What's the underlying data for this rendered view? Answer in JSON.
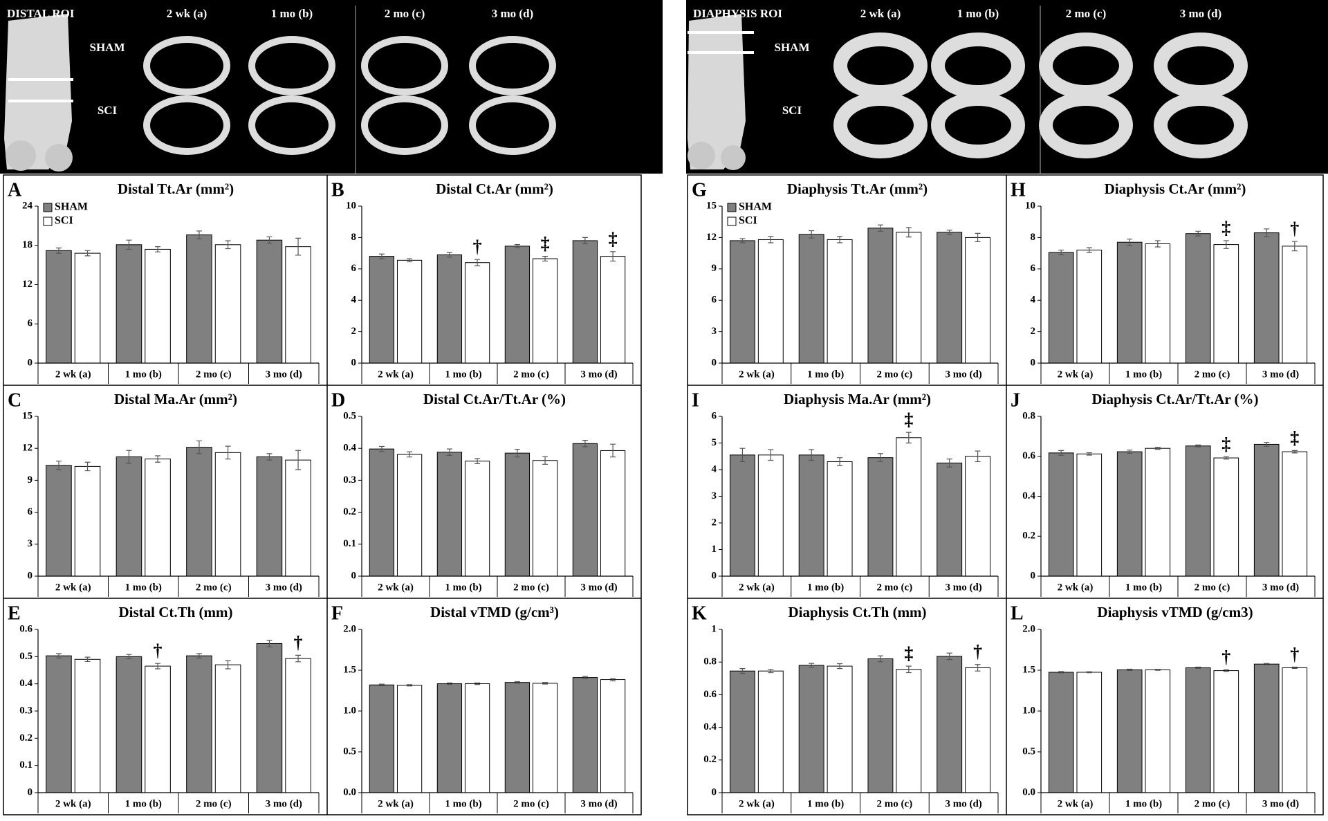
{
  "panels": [
    {
      "title": "DISTAL ROI",
      "columns": [
        "2 wk (a)",
        "1 mo (b)",
        "2 mo (c)",
        "3 mo (d)"
      ],
      "rows": [
        "SHAM",
        "SCI"
      ]
    },
    {
      "title": "DIAPHYSIS ROI",
      "columns": [
        "2 wk (a)",
        "1 mo (b)",
        "2 mo (c)",
        "3 mo (d)"
      ],
      "rows": [
        "SHAM",
        "SCI"
      ]
    }
  ],
  "chart_data": [
    {
      "type": "bar",
      "letter": "A",
      "title": "Distal Tt.Ar (mm²)",
      "categories": [
        "2 wk (a)",
        "1 mo (b)",
        "2 mo (c)",
        "3 mo (d)"
      ],
      "legend": "upper left",
      "series": [
        {
          "name": "SHAM",
          "color": "#808080",
          "values": [
            17.2,
            18.1,
            19.6,
            18.8
          ],
          "errors": [
            0.4,
            0.7,
            0.6,
            0.5
          ]
        },
        {
          "name": "SCI",
          "color": "#ffffff",
          "values": [
            16.8,
            17.4,
            18.1,
            17.8
          ],
          "errors": [
            0.4,
            0.4,
            0.6,
            1.3
          ]
        }
      ],
      "ylim": [
        0,
        24
      ],
      "yticks": [
        0,
        6,
        12,
        18,
        24
      ]
    },
    {
      "type": "bar",
      "letter": "B",
      "title": "Distal Ct.Ar (mm²)",
      "categories": [
        "2 wk (a)",
        "1 mo (b)",
        "2 mo (c)",
        "3 mo (d)"
      ],
      "series": [
        {
          "color": "#808080",
          "values": [
            6.8,
            6.9,
            7.45,
            7.8
          ],
          "errors": [
            0.15,
            0.15,
            0.1,
            0.2
          ]
        },
        {
          "color": "#ffffff",
          "values": [
            6.55,
            6.4,
            6.65,
            6.8
          ],
          "errors": [
            0.1,
            0.2,
            0.15,
            0.3
          ],
          "markers": [
            null,
            "†",
            "‡",
            "‡"
          ]
        }
      ],
      "ylim": [
        0,
        10
      ],
      "yticks": [
        0,
        2,
        4,
        6,
        8,
        10
      ]
    },
    {
      "type": "bar",
      "letter": "C",
      "title": "Distal Ma.Ar (mm²)",
      "categories": [
        "2 wk (a)",
        "1 mo (b)",
        "2 mo (c)",
        "3 mo (d)"
      ],
      "series": [
        {
          "color": "#808080",
          "values": [
            10.4,
            11.2,
            12.1,
            11.2
          ],
          "errors": [
            0.4,
            0.6,
            0.6,
            0.3
          ]
        },
        {
          "color": "#ffffff",
          "values": [
            10.3,
            11.0,
            11.6,
            10.9
          ],
          "errors": [
            0.4,
            0.3,
            0.6,
            0.9
          ]
        }
      ],
      "ylim": [
        0,
        15
      ],
      "yticks": [
        0,
        3,
        6,
        9,
        12,
        15
      ]
    },
    {
      "type": "bar",
      "letter": "D",
      "title": "Distal Ct.Ar/Tt.Ar (%)",
      "categories": [
        "2 wk (a)",
        "1 mo (b)",
        "2 mo (c)",
        "3 mo (d)"
      ],
      "series": [
        {
          "color": "#808080",
          "values": [
            0.398,
            0.388,
            0.385,
            0.415
          ],
          "errors": [
            0.008,
            0.01,
            0.012,
            0.01
          ]
        },
        {
          "color": "#ffffff",
          "values": [
            0.381,
            0.36,
            0.362,
            0.393
          ],
          "errors": [
            0.008,
            0.008,
            0.012,
            0.02
          ]
        }
      ],
      "ylim": [
        0,
        0.5
      ],
      "yticks": [
        0,
        0.1,
        0.2,
        0.3,
        0.4,
        0.5
      ]
    },
    {
      "type": "bar",
      "letter": "E",
      "title": "Distal Ct.Th (mm)",
      "categories": [
        "2 wk (a)",
        "1 mo (b)",
        "2 mo (c)",
        "3 mo (d)"
      ],
      "series": [
        {
          "color": "#808080",
          "values": [
            0.503,
            0.5,
            0.503,
            0.548
          ],
          "errors": [
            0.008,
            0.008,
            0.008,
            0.012
          ]
        },
        {
          "color": "#ffffff",
          "values": [
            0.49,
            0.465,
            0.47,
            0.493
          ],
          "errors": [
            0.008,
            0.01,
            0.015,
            0.012
          ],
          "markers": [
            null,
            "†",
            null,
            "†"
          ]
        }
      ],
      "ylim": [
        0,
        0.6
      ],
      "yticks": [
        0,
        0.1,
        0.2,
        0.3,
        0.4,
        0.5,
        0.6
      ]
    },
    {
      "type": "bar",
      "letter": "F",
      "title": "Distal vTMD (g/cm³)",
      "categories": [
        "2 wk (a)",
        "1 mo (b)",
        "2 mo (c)",
        "3 mo (d)"
      ],
      "series": [
        {
          "color": "#808080",
          "values": [
            1.32,
            1.335,
            1.35,
            1.41
          ],
          "errors": [
            0.01,
            0.01,
            0.01,
            0.015
          ]
        },
        {
          "color": "#ffffff",
          "values": [
            1.315,
            1.335,
            1.34,
            1.385
          ],
          "errors": [
            0.008,
            0.01,
            0.01,
            0.015
          ]
        }
      ],
      "ylim": [
        0,
        2
      ],
      "yticks": [
        {
          "value": 0,
          "label": "0.0"
        },
        0.5,
        {
          "value": 1,
          "label": "1.0"
        },
        1.5,
        {
          "value": 2,
          "label": "2.0"
        }
      ]
    },
    {
      "type": "bar",
      "letter": "G",
      "title": "Diaphysis Tt.Ar (mm²)",
      "categories": [
        "2 wk (a)",
        "1 mo (b)",
        "2 mo (c)",
        "3 mo (d)"
      ],
      "legend": "upper left",
      "series": [
        {
          "name": "SHAM",
          "color": "#808080",
          "values": [
            11.7,
            12.3,
            12.9,
            12.5
          ],
          "errors": [
            0.2,
            0.35,
            0.3,
            0.2
          ]
        },
        {
          "name": "SCI",
          "color": "#ffffff",
          "values": [
            11.8,
            11.8,
            12.5,
            12.0
          ],
          "errors": [
            0.3,
            0.3,
            0.45,
            0.4
          ]
        }
      ],
      "ylim": [
        0,
        15
      ],
      "yticks": [
        0,
        3,
        6,
        9,
        12,
        15
      ]
    },
    {
      "type": "bar",
      "letter": "H",
      "title": "Diaphysis Ct.Ar (mm²)",
      "categories": [
        "2 wk (a)",
        "1 mo (b)",
        "2 mo (c)",
        "3 mo (d)"
      ],
      "series": [
        {
          "color": "#808080",
          "values": [
            7.05,
            7.7,
            8.25,
            8.3
          ],
          "errors": [
            0.15,
            0.2,
            0.15,
            0.25
          ]
        },
        {
          "color": "#ffffff",
          "values": [
            7.2,
            7.6,
            7.55,
            7.45
          ],
          "errors": [
            0.15,
            0.2,
            0.25,
            0.3
          ],
          "markers": [
            null,
            null,
            "‡",
            "†"
          ]
        }
      ],
      "ylim": [
        0,
        10
      ],
      "yticks": [
        0,
        2,
        4,
        6,
        8,
        10
      ]
    },
    {
      "type": "bar",
      "letter": "I",
      "title": "Diaphysis Ma.Ar (mm²)",
      "categories": [
        "2 wk (a)",
        "1 mo (b)",
        "2 mo (c)",
        "3 mo (d)"
      ],
      "series": [
        {
          "color": "#808080",
          "values": [
            4.55,
            4.55,
            4.45,
            4.25
          ],
          "errors": [
            0.25,
            0.2,
            0.15,
            0.15
          ]
        },
        {
          "color": "#ffffff",
          "values": [
            4.55,
            4.3,
            5.2,
            4.5
          ],
          "errors": [
            0.2,
            0.15,
            0.2,
            0.2
          ],
          "markers": [
            null,
            null,
            "‡",
            null
          ]
        }
      ],
      "ylim": [
        0,
        6
      ],
      "yticks": [
        0,
        1,
        2,
        3,
        4,
        5,
        6
      ]
    },
    {
      "type": "bar",
      "letter": "J",
      "title": "Diaphysis Ct.Ar/Tt.Ar (%)",
      "categories": [
        "2 wk (a)",
        "1 mo (b)",
        "2 mo (c)",
        "3 mo (d)"
      ],
      "series": [
        {
          "color": "#808080",
          "values": [
            0.617,
            0.623,
            0.652,
            0.66
          ],
          "errors": [
            0.012,
            0.008,
            0.005,
            0.01
          ]
        },
        {
          "color": "#ffffff",
          "values": [
            0.612,
            0.64,
            0.592,
            0.623
          ],
          "errors": [
            0.006,
            0.005,
            0.006,
            0.006
          ],
          "markers": [
            null,
            null,
            "‡",
            "‡"
          ]
        }
      ],
      "ylim": [
        0,
        0.8
      ],
      "yticks": [
        0,
        0.2,
        0.4,
        0.6,
        0.8
      ]
    },
    {
      "type": "bar",
      "letter": "K",
      "title": "Diaphysis Ct.Th (mm)",
      "categories": [
        "2 wk (a)",
        "1 mo (b)",
        "2 mo (c)",
        "3 mo (d)"
      ],
      "series": [
        {
          "color": "#808080",
          "values": [
            0.745,
            0.78,
            0.82,
            0.835
          ],
          "errors": [
            0.015,
            0.012,
            0.018,
            0.02
          ]
        },
        {
          "color": "#ffffff",
          "values": [
            0.745,
            0.775,
            0.755,
            0.765
          ],
          "errors": [
            0.01,
            0.015,
            0.02,
            0.02
          ],
          "markers": [
            null,
            null,
            "‡",
            "†"
          ]
        }
      ],
      "ylim": [
        0,
        1
      ],
      "yticks": [
        0,
        0.2,
        0.4,
        0.6,
        0.8,
        1
      ]
    },
    {
      "type": "bar",
      "letter": "L",
      "title": "Diaphysis vTMD (g/cm3)",
      "categories": [
        "2 wk (a)",
        "1 mo (b)",
        "2 mo (c)",
        "3 mo (d)"
      ],
      "series": [
        {
          "color": "#808080",
          "values": [
            1.475,
            1.505,
            1.53,
            1.575
          ],
          "errors": [
            0.008,
            0.008,
            0.008,
            0.008
          ]
        },
        {
          "color": "#ffffff",
          "values": [
            1.475,
            1.505,
            1.495,
            1.53
          ],
          "errors": [
            0.006,
            0.006,
            0.01,
            0.008
          ],
          "markers": [
            null,
            null,
            "†",
            "†"
          ]
        }
      ],
      "ylim": [
        0,
        2
      ],
      "yticks": [
        {
          "value": 0,
          "label": "0.0"
        },
        0.5,
        {
          "value": 1,
          "label": "1.0"
        },
        1.5,
        {
          "value": 2,
          "label": "2.0"
        }
      ]
    }
  ]
}
